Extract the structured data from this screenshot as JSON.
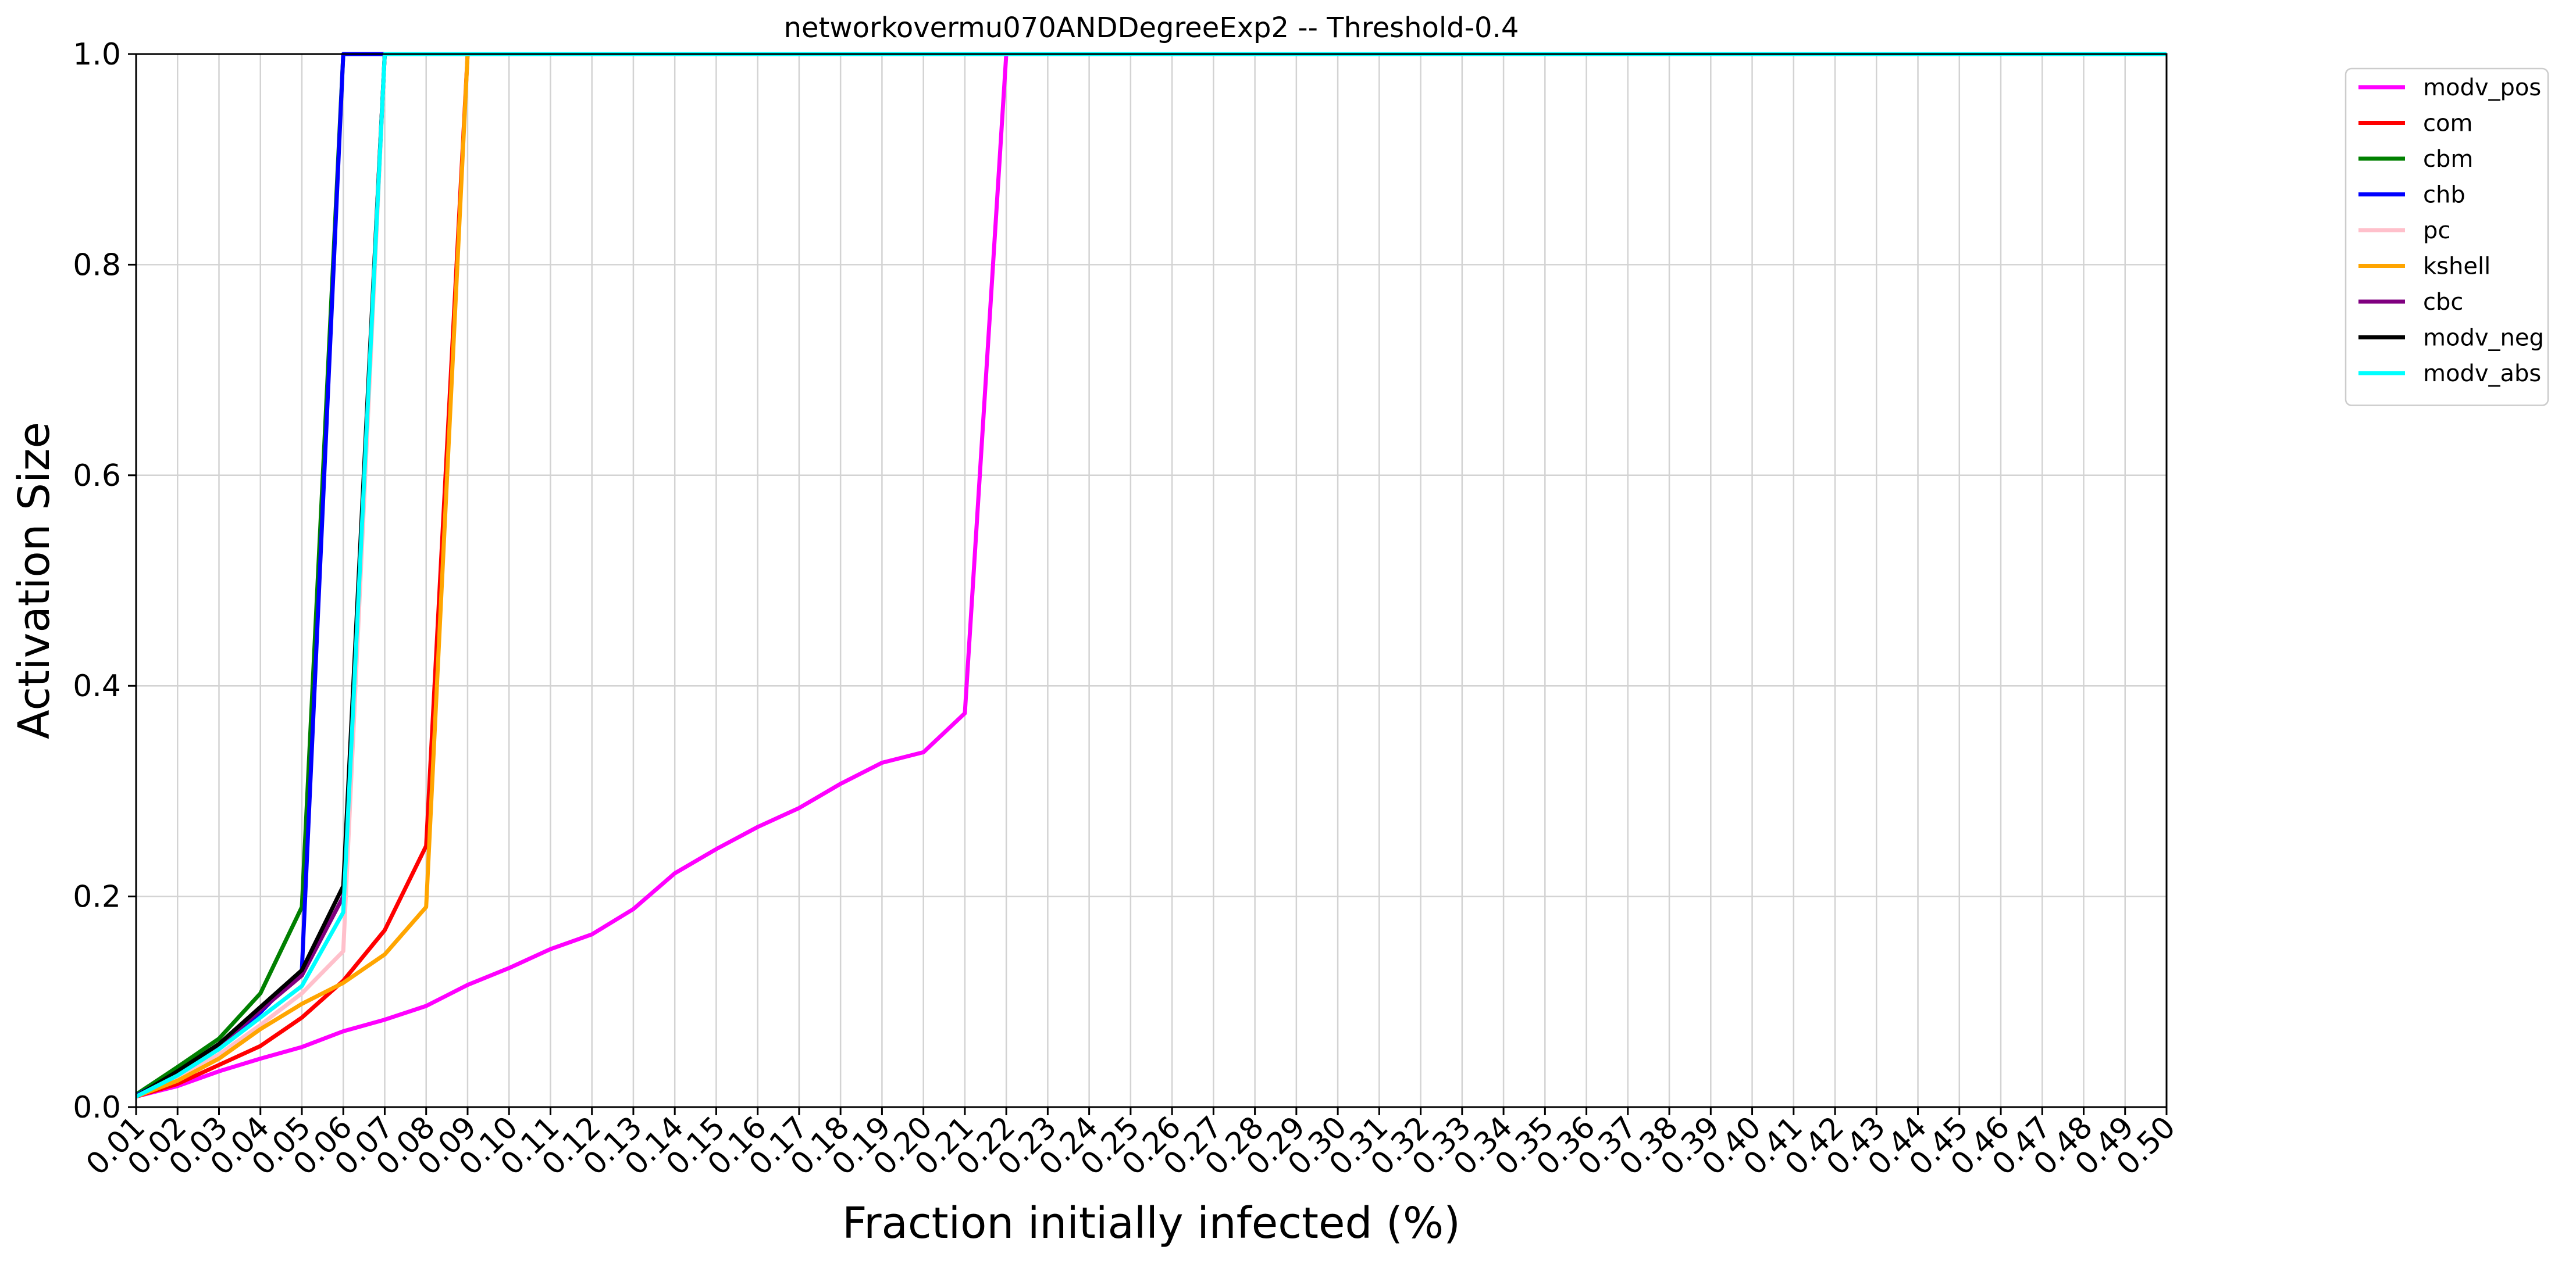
{
  "chart_data": {
    "type": "line",
    "title": "networkovermu070ANDDegreeExp2 -- Threshold-0.4",
    "xlabel": "Fraction initially infected (%)",
    "ylabel": "Activation Size",
    "x": [
      0.01,
      0.02,
      0.03,
      0.04,
      0.05,
      0.06,
      0.07,
      0.08,
      0.09,
      0.1,
      0.11,
      0.12,
      0.13,
      0.14,
      0.15,
      0.16,
      0.17,
      0.18,
      0.19,
      0.2,
      0.21,
      0.22,
      0.23,
      0.24,
      0.25,
      0.26,
      0.27,
      0.28,
      0.29,
      0.3,
      0.31,
      0.32,
      0.33,
      0.34,
      0.35,
      0.36,
      0.37,
      0.38,
      0.39,
      0.4,
      0.41,
      0.42,
      0.43,
      0.44,
      0.45,
      0.46,
      0.47,
      0.48,
      0.49,
      0.5
    ],
    "x_tick_labels": [
      "0.01",
      "0.02",
      "0.03",
      "0.04",
      "0.05",
      "0.06",
      "0.07",
      "0.08",
      "0.09",
      "0.10",
      "0.11",
      "0.12",
      "0.13",
      "0.14",
      "0.15",
      "0.16",
      "0.17",
      "0.18",
      "0.19",
      "0.20",
      "0.21",
      "0.22",
      "0.23",
      "0.24",
      "0.25",
      "0.26",
      "0.27",
      "0.28",
      "0.29",
      "0.30",
      "0.31",
      "0.32",
      "0.33",
      "0.34",
      "0.35",
      "0.36",
      "0.37",
      "0.38",
      "0.39",
      "0.40",
      "0.41",
      "0.42",
      "0.43",
      "0.44",
      "0.45",
      "0.46",
      "0.47",
      "0.48",
      "0.49",
      "0.50"
    ],
    "xlim": [
      0.01,
      0.5
    ],
    "ylim": [
      0.0,
      1.0
    ],
    "y_ticks": [
      0.0,
      0.2,
      0.4,
      0.6,
      0.8,
      1.0
    ],
    "y_tick_labels": [
      "0.0",
      "0.2",
      "0.4",
      "0.6",
      "0.8",
      "1.0"
    ],
    "grid": true,
    "legend_position": "outside-top-right",
    "series": [
      {
        "name": "modv_pos",
        "color": "#ff00ff",
        "values": [
          0.01,
          0.02,
          0.034,
          0.046,
          0.057,
          0.072,
          0.083,
          0.096,
          0.116,
          0.132,
          0.15,
          0.164,
          0.188,
          0.222,
          0.245,
          0.266,
          0.284,
          0.307,
          0.327,
          0.337,
          0.374,
          1.0,
          1.0,
          1.0,
          1.0,
          1.0,
          1.0,
          1.0,
          1.0,
          1.0,
          1.0,
          1.0,
          1.0,
          1.0,
          1.0,
          1.0,
          1.0,
          1.0,
          1.0,
          1.0,
          1.0,
          1.0,
          1.0,
          1.0,
          1.0,
          1.0,
          1.0,
          1.0,
          1.0,
          1.0
        ]
      },
      {
        "name": "com",
        "color": "#ff0000",
        "values": [
          0.01,
          0.022,
          0.04,
          0.058,
          0.085,
          0.12,
          0.168,
          0.248,
          1.0,
          1.0,
          1.0,
          1.0,
          1.0,
          1.0,
          1.0,
          1.0,
          1.0,
          1.0,
          1.0,
          1.0,
          1.0,
          1.0,
          1.0,
          1.0,
          1.0,
          1.0,
          1.0,
          1.0,
          1.0,
          1.0,
          1.0,
          1.0,
          1.0,
          1.0,
          1.0,
          1.0,
          1.0,
          1.0,
          1.0,
          1.0,
          1.0,
          1.0,
          1.0,
          1.0,
          1.0,
          1.0,
          1.0,
          1.0,
          1.0,
          1.0
        ]
      },
      {
        "name": "cbm",
        "color": "#008000",
        "values": [
          0.012,
          0.038,
          0.065,
          0.108,
          0.19,
          1.0,
          1.0,
          1.0,
          1.0,
          1.0,
          1.0,
          1.0,
          1.0,
          1.0,
          1.0,
          1.0,
          1.0,
          1.0,
          1.0,
          1.0,
          1.0,
          1.0,
          1.0,
          1.0,
          1.0,
          1.0,
          1.0,
          1.0,
          1.0,
          1.0,
          1.0,
          1.0,
          1.0,
          1.0,
          1.0,
          1.0,
          1.0,
          1.0,
          1.0,
          1.0,
          1.0,
          1.0,
          1.0,
          1.0,
          1.0,
          1.0,
          1.0,
          1.0,
          1.0,
          1.0
        ]
      },
      {
        "name": "chb",
        "color": "#0000ff",
        "values": [
          0.011,
          0.032,
          0.058,
          0.09,
          0.13,
          1.0,
          1.0,
          1.0,
          1.0,
          1.0,
          1.0,
          1.0,
          1.0,
          1.0,
          1.0,
          1.0,
          1.0,
          1.0,
          1.0,
          1.0,
          1.0,
          1.0,
          1.0,
          1.0,
          1.0,
          1.0,
          1.0,
          1.0,
          1.0,
          1.0,
          1.0,
          1.0,
          1.0,
          1.0,
          1.0,
          1.0,
          1.0,
          1.0,
          1.0,
          1.0,
          1.0,
          1.0,
          1.0,
          1.0,
          1.0,
          1.0,
          1.0,
          1.0,
          1.0,
          1.0
        ]
      },
      {
        "name": "pc",
        "color": "#ffc0cb",
        "values": [
          0.01,
          0.028,
          0.05,
          0.078,
          0.108,
          0.148,
          1.0,
          1.0,
          1.0,
          1.0,
          1.0,
          1.0,
          1.0,
          1.0,
          1.0,
          1.0,
          1.0,
          1.0,
          1.0,
          1.0,
          1.0,
          1.0,
          1.0,
          1.0,
          1.0,
          1.0,
          1.0,
          1.0,
          1.0,
          1.0,
          1.0,
          1.0,
          1.0,
          1.0,
          1.0,
          1.0,
          1.0,
          1.0,
          1.0,
          1.0,
          1.0,
          1.0,
          1.0,
          1.0,
          1.0,
          1.0,
          1.0,
          1.0,
          1.0,
          1.0
        ]
      },
      {
        "name": "kshell",
        "color": "#ffa500",
        "values": [
          0.01,
          0.025,
          0.046,
          0.074,
          0.098,
          0.118,
          0.145,
          0.19,
          1.0,
          1.0,
          1.0,
          1.0,
          1.0,
          1.0,
          1.0,
          1.0,
          1.0,
          1.0,
          1.0,
          1.0,
          1.0,
          1.0,
          1.0,
          1.0,
          1.0,
          1.0,
          1.0,
          1.0,
          1.0,
          1.0,
          1.0,
          1.0,
          1.0,
          1.0,
          1.0,
          1.0,
          1.0,
          1.0,
          1.0,
          1.0,
          1.0,
          1.0,
          1.0,
          1.0,
          1.0,
          1.0,
          1.0,
          1.0,
          1.0,
          1.0
        ]
      },
      {
        "name": "cbc",
        "color": "#800080",
        "values": [
          0.01,
          0.033,
          0.058,
          0.092,
          0.125,
          0.2,
          1.0,
          1.0,
          1.0,
          1.0,
          1.0,
          1.0,
          1.0,
          1.0,
          1.0,
          1.0,
          1.0,
          1.0,
          1.0,
          1.0,
          1.0,
          1.0,
          1.0,
          1.0,
          1.0,
          1.0,
          1.0,
          1.0,
          1.0,
          1.0,
          1.0,
          1.0,
          1.0,
          1.0,
          1.0,
          1.0,
          1.0,
          1.0,
          1.0,
          1.0,
          1.0,
          1.0,
          1.0,
          1.0,
          1.0,
          1.0,
          1.0,
          1.0,
          1.0,
          1.0
        ]
      },
      {
        "name": "modv_neg",
        "color": "#000000",
        "values": [
          0.01,
          0.034,
          0.06,
          0.095,
          0.13,
          0.21,
          1.0,
          1.0,
          1.0,
          1.0,
          1.0,
          1.0,
          1.0,
          1.0,
          1.0,
          1.0,
          1.0,
          1.0,
          1.0,
          1.0,
          1.0,
          1.0,
          1.0,
          1.0,
          1.0,
          1.0,
          1.0,
          1.0,
          1.0,
          1.0,
          1.0,
          1.0,
          1.0,
          1.0,
          1.0,
          1.0,
          1.0,
          1.0,
          1.0,
          1.0,
          1.0,
          1.0,
          1.0,
          1.0,
          1.0,
          1.0,
          1.0,
          1.0,
          1.0,
          1.0
        ]
      },
      {
        "name": "modv_abs",
        "color": "#00ffff",
        "values": [
          0.01,
          0.03,
          0.055,
          0.085,
          0.115,
          0.185,
          1.0,
          1.0,
          1.0,
          1.0,
          1.0,
          1.0,
          1.0,
          1.0,
          1.0,
          1.0,
          1.0,
          1.0,
          1.0,
          1.0,
          1.0,
          1.0,
          1.0,
          1.0,
          1.0,
          1.0,
          1.0,
          1.0,
          1.0,
          1.0,
          1.0,
          1.0,
          1.0,
          1.0,
          1.0,
          1.0,
          1.0,
          1.0,
          1.0,
          1.0,
          1.0,
          1.0,
          1.0,
          1.0,
          1.0,
          1.0,
          1.0,
          1.0,
          1.0,
          1.0
        ]
      }
    ]
  }
}
